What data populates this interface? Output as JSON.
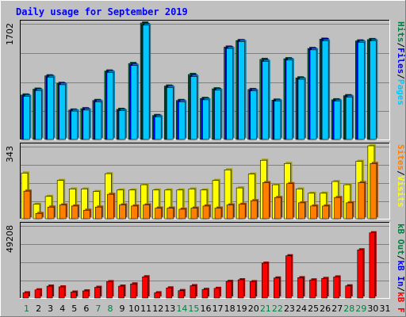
{
  "chart_data": [
    {
      "type": "bar",
      "title": "Daily usage for September 2019",
      "panel": "pages-files-hits",
      "ymax_label": "1702",
      "ylim": [
        0,
        1702
      ],
      "categories": [
        "1",
        "2",
        "3",
        "4",
        "5",
        "6",
        "7",
        "8",
        "9",
        "10",
        "11",
        "12",
        "13",
        "14",
        "15",
        "16",
        "17",
        "18",
        "19",
        "20",
        "21",
        "22",
        "23",
        "24",
        "25",
        "26",
        "27",
        "28",
        "29",
        "30",
        "31"
      ],
      "weekend_days": [
        "1",
        "7",
        "8",
        "14",
        "15",
        "21",
        "22",
        "28",
        "29"
      ],
      "legend": [
        {
          "label": "Pages",
          "color": "#00c8ff"
        },
        {
          "label": "Files",
          "color": "#0000ff"
        },
        {
          "label": "Hits",
          "color": "#008040"
        }
      ],
      "sep": "/",
      "series": [
        {
          "name": "Hits",
          "values": [
            650,
            735,
            930,
            820,
            430,
            450,
            570,
            1000,
            440,
            1110,
            1702,
            350,
            780,
            570,
            950,
            600,
            740,
            1350,
            1445,
            730,
            1170,
            575,
            1180,
            900,
            1330,
            1465,
            580,
            640,
            1440,
            1460,
            0
          ]
        },
        {
          "name": "Files",
          "values": [
            640,
            725,
            920,
            810,
            420,
            440,
            560,
            990,
            430,
            1090,
            1680,
            340,
            770,
            560,
            930,
            590,
            730,
            1340,
            1440,
            720,
            1150,
            570,
            1170,
            890,
            1320,
            1460,
            570,
            630,
            1430,
            1450,
            0
          ]
        },
        {
          "name": "Pages",
          "values": [
            630,
            715,
            910,
            800,
            415,
            430,
            550,
            980,
            420,
            1080,
            1670,
            330,
            760,
            550,
            920,
            580,
            720,
            1330,
            1430,
            710,
            1140,
            560,
            1160,
            880,
            1310,
            1440,
            560,
            620,
            1420,
            1440,
            0
          ]
        }
      ]
    },
    {
      "type": "bar",
      "panel": "visits-sites",
      "ymax_label": "343",
      "ylim": [
        0,
        343
      ],
      "legend": [
        {
          "label": "Visits",
          "color": "#ffff00"
        },
        {
          "label": "Sites",
          "color": "#ff8000"
        }
      ],
      "sep": "/",
      "series": [
        {
          "name": "Visits",
          "values": [
            215,
            68,
            105,
            180,
            140,
            140,
            128,
            212,
            135,
            135,
            160,
            135,
            135,
            135,
            140,
            135,
            180,
            230,
            145,
            210,
            275,
            160,
            260,
            140,
            120,
            120,
            175,
            160,
            270,
            343,
            0
          ]
        },
        {
          "name": "Sites",
          "values": [
            130,
            25,
            55,
            65,
            60,
            40,
            55,
            115,
            65,
            60,
            65,
            50,
            50,
            45,
            50,
            60,
            50,
            65,
            68,
            85,
            170,
            100,
            165,
            75,
            60,
            60,
            100,
            75,
            170,
            260,
            0
          ]
        }
      ]
    },
    {
      "type": "bar",
      "panel": "kbytes",
      "ymax_label": "49208",
      "ylim": [
        0,
        49208
      ],
      "legend": [
        {
          "label": "kB F",
          "color": "#ff0000"
        },
        {
          "label": "kB In",
          "color": "#0000ff"
        },
        {
          "label": "kB Out",
          "color": "#008040"
        }
      ],
      "sep": "/",
      "series": [
        {
          "name": "kB F",
          "values": [
            3500,
            5500,
            8000,
            7500,
            4000,
            4800,
            7200,
            11000,
            8000,
            9500,
            14300,
            3500,
            6800,
            5000,
            8300,
            5800,
            6500,
            11200,
            12300,
            11000,
            23500,
            13500,
            28500,
            13700,
            12200,
            13200,
            14200,
            8200,
            32500,
            44000,
            0
          ]
        }
      ]
    }
  ]
}
